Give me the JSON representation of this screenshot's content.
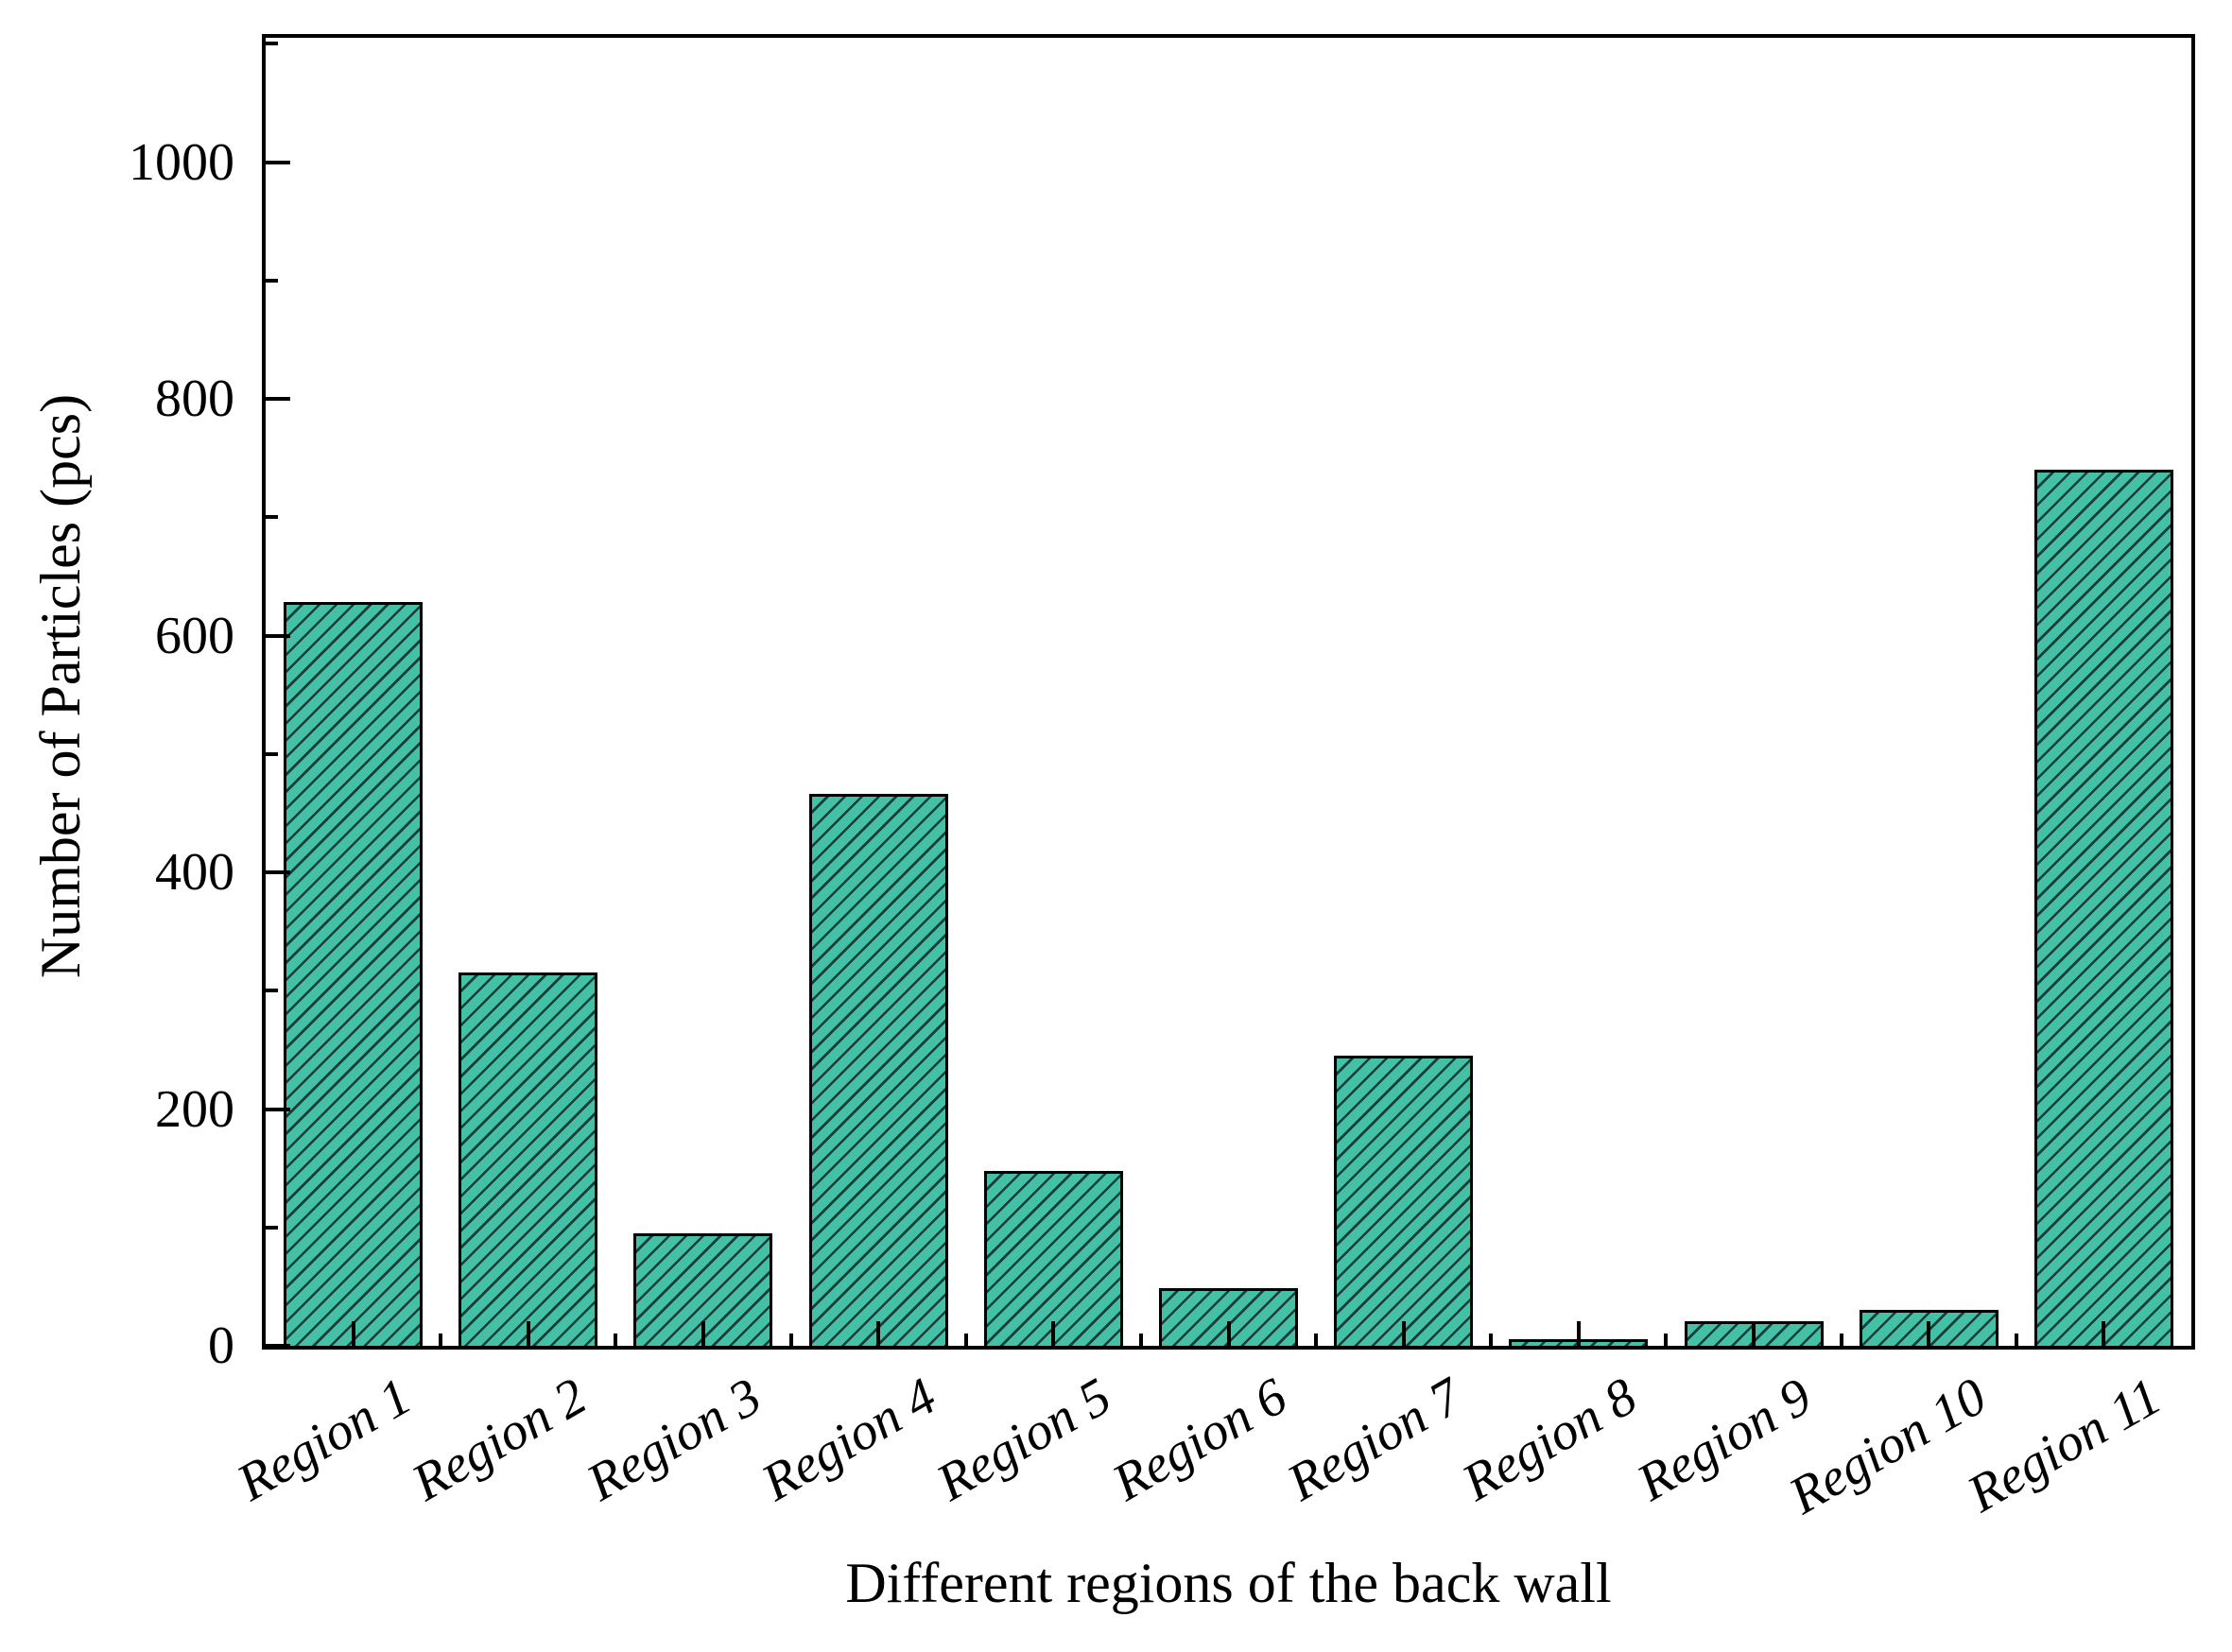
{
  "chart_data": {
    "type": "bar",
    "categories": [
      "Region 1",
      "Region 2",
      "Region 3",
      "Region 4",
      "Region 5",
      "Region 6",
      "Region 7",
      "Region 8",
      "Region 9",
      "Region 10",
      "Region 11"
    ],
    "values": [
      628,
      315,
      95,
      466,
      148,
      49,
      245,
      6,
      21,
      30,
      740
    ],
    "title": "",
    "xlabel": "Different regions of the back wall",
    "ylabel": "Number of Particles (pcs)",
    "ylim": [
      0,
      1105
    ],
    "yticks_major": [
      0,
      200,
      400,
      600,
      800,
      1000
    ],
    "yticks_minor": [
      100,
      300,
      500,
      700,
      900,
      1100
    ],
    "grid": false,
    "legend": "none",
    "bar_fill_color": "#44c0a6",
    "bar_edge_color": "#000000",
    "hatch_pattern": "/",
    "hatch_color": "rgba(10,30,26,0.8)",
    "axis_color": "#000000",
    "tick_direction": "in",
    "x_tick_label_rotation_deg": 30,
    "x_tick_label_style": "italic"
  }
}
